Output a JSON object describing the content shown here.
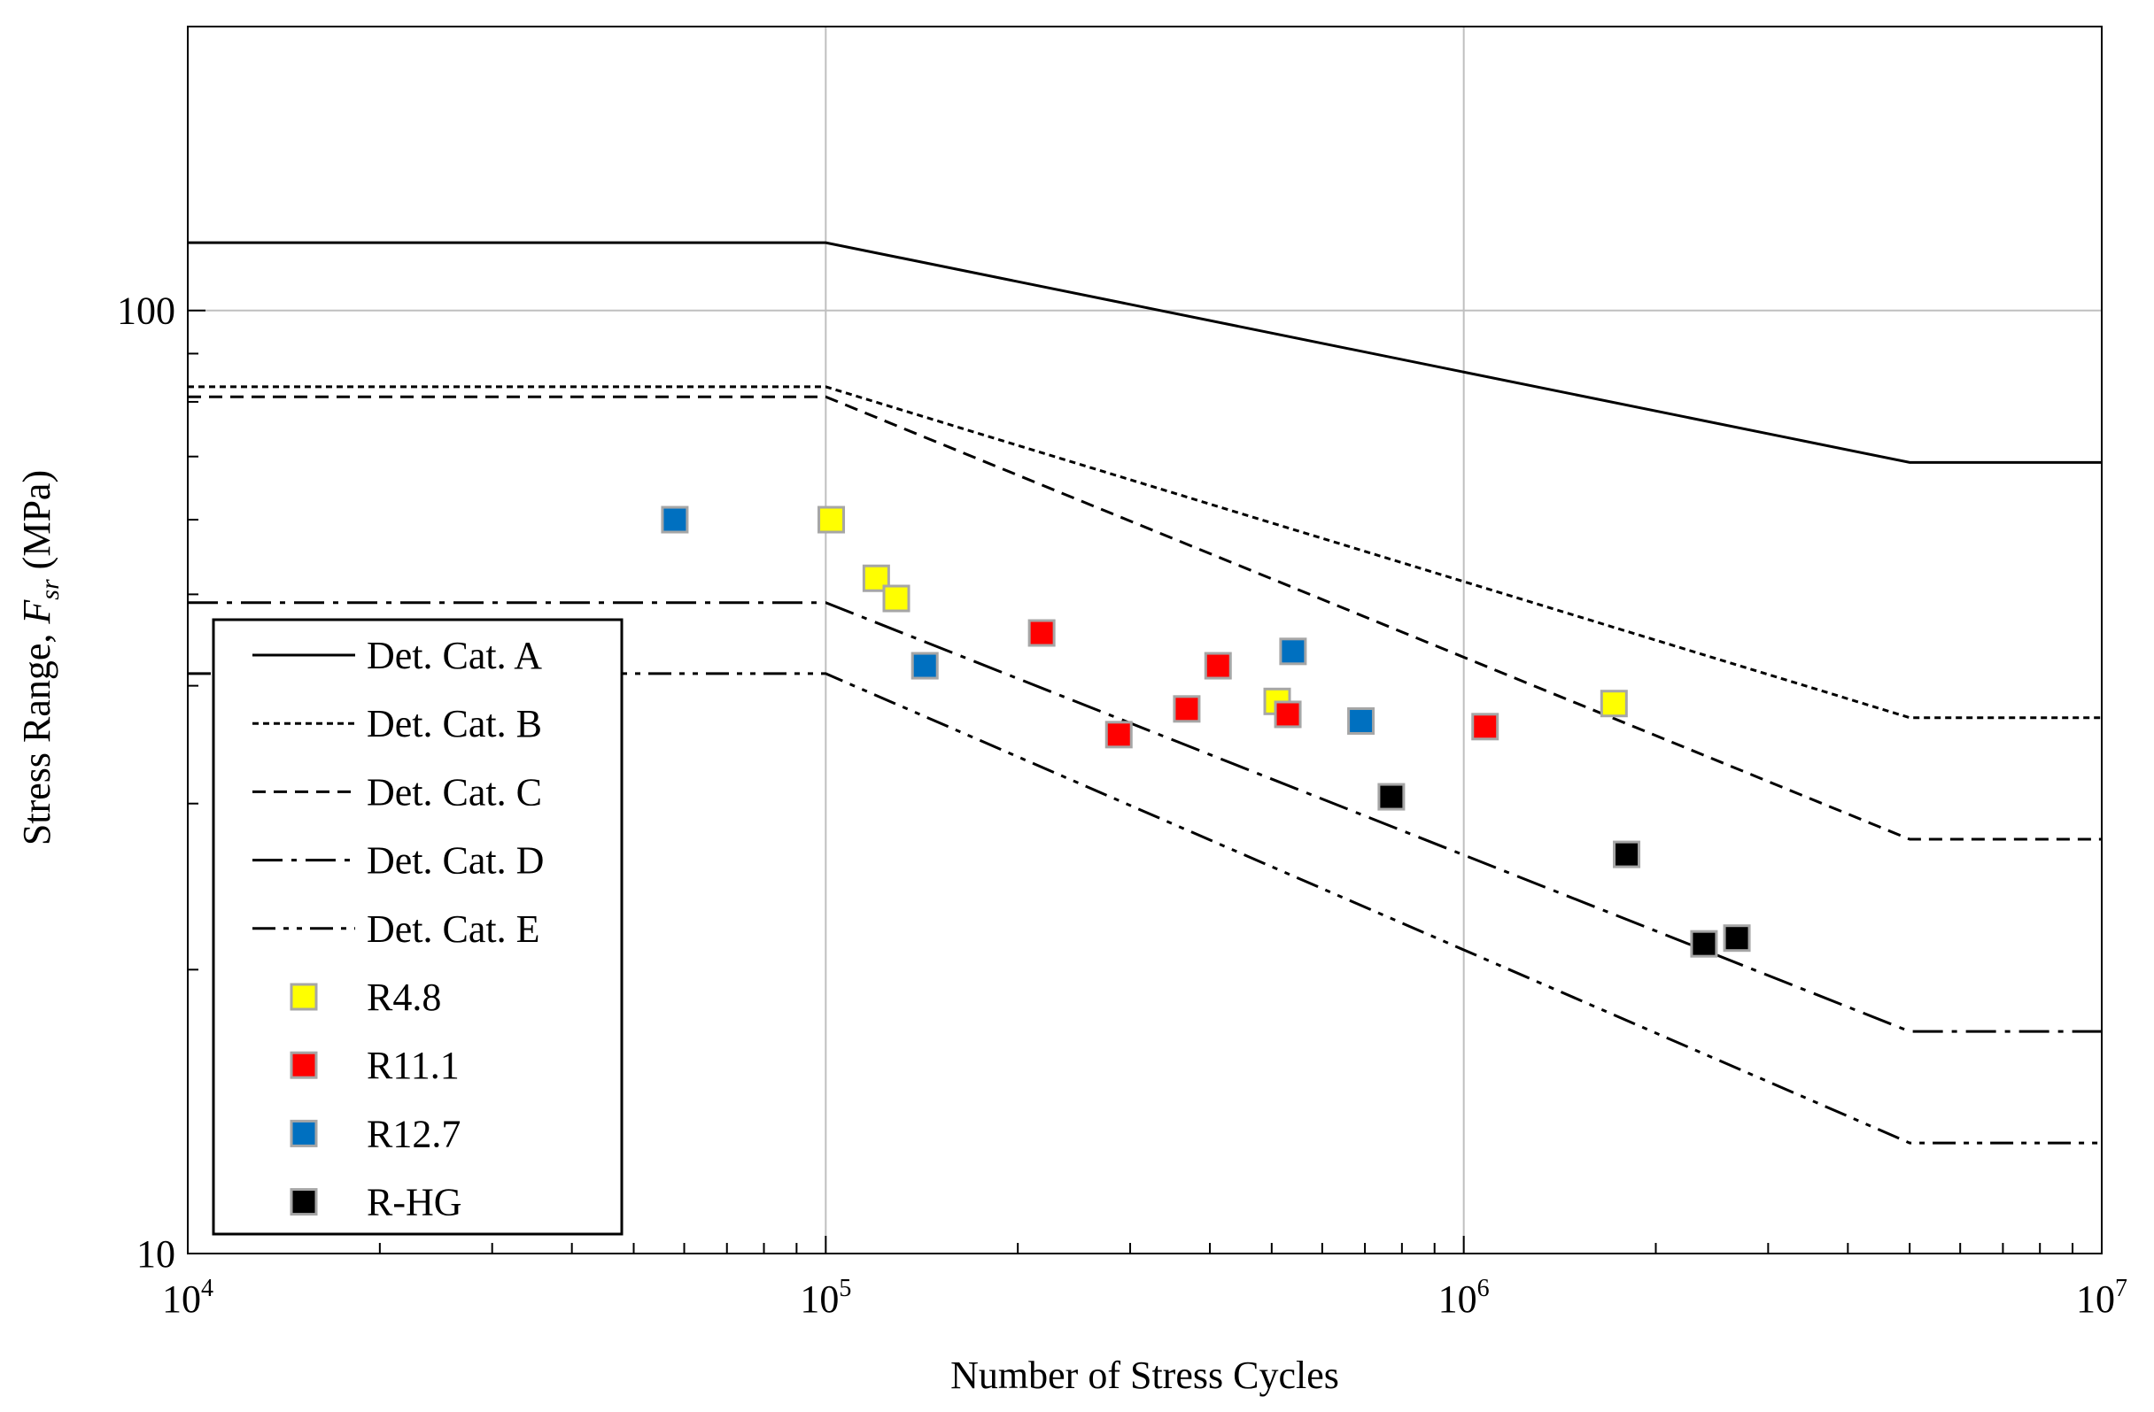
{
  "chart_data": {
    "type": "scatter",
    "xlabel": "Number of Stress Cycles",
    "ylabel": {
      "prefix": "Stress Range, ",
      "symbol": "F",
      "subscript": "sr",
      "suffix": " (MPa)"
    },
    "xscale": "log",
    "yscale": "log",
    "xlim": [
      10000,
      10000000
    ],
    "ylim": [
      10,
      200
    ],
    "grid": true,
    "legend_position": "bottom-left",
    "x_ticks": [
      {
        "value": 10000,
        "base": "10",
        "exp": "4"
      },
      {
        "value": 100000,
        "base": "10",
        "exp": "5"
      },
      {
        "value": 1000000,
        "base": "10",
        "exp": "6"
      },
      {
        "value": 10000000,
        "base": "10",
        "exp": "7"
      }
    ],
    "y_ticks": [
      {
        "value": 10,
        "label": "10"
      },
      {
        "value": 100,
        "label": "100"
      }
    ],
    "lines": [
      {
        "name": "Det. Cat. A",
        "dash": "solid",
        "x": [
          10000,
          100000,
          5000000,
          10000000
        ],
        "y": [
          118,
          118,
          69,
          69
        ]
      },
      {
        "name": "Det. Cat. B",
        "dash": "dotted",
        "x": [
          10000,
          100000,
          5000000,
          10000000
        ],
        "y": [
          83,
          83,
          37,
          37
        ]
      },
      {
        "name": "Det. Cat. C",
        "dash": "dashed",
        "x": [
          10000,
          100000,
          5000000,
          10000000
        ],
        "y": [
          81,
          81,
          27.5,
          27.5
        ]
      },
      {
        "name": "Det. Cat. D",
        "dash": "dash-dot",
        "x": [
          10000,
          100000,
          5000000,
          10000000
        ],
        "y": [
          49,
          49,
          17.2,
          17.2
        ]
      },
      {
        "name": "Det. Cat. E",
        "dash": "dash-dot-dot",
        "x": [
          10000,
          100000,
          5000000,
          10000000
        ],
        "y": [
          41.2,
          41.2,
          13.1,
          13.1
        ]
      }
    ],
    "series": [
      {
        "name": "R4.8",
        "color": "#FFFF00",
        "points": [
          [
            102000,
            60
          ],
          [
            120000,
            52
          ],
          [
            129000,
            49.5
          ],
          [
            510000,
            38.5
          ],
          [
            1720000,
            38.3
          ]
        ]
      },
      {
        "name": "R11.1",
        "color": "#FF0000",
        "points": [
          [
            218000,
            45.5
          ],
          [
            288000,
            35.5
          ],
          [
            368000,
            37.8
          ],
          [
            412000,
            42
          ],
          [
            530000,
            37.3
          ],
          [
            1080000,
            36.2
          ]
        ]
      },
      {
        "name": "R12.7",
        "color": "#0070C0",
        "points": [
          [
            58000,
            60
          ],
          [
            143000,
            42
          ],
          [
            540000,
            43.5
          ],
          [
            690000,
            36.7
          ]
        ]
      },
      {
        "name": "R-HG",
        "color": "#000000",
        "points": [
          [
            770000,
            30.5
          ],
          [
            1800000,
            26.5
          ],
          [
            2380000,
            21.3
          ],
          [
            2680000,
            21.6
          ]
        ]
      }
    ]
  }
}
